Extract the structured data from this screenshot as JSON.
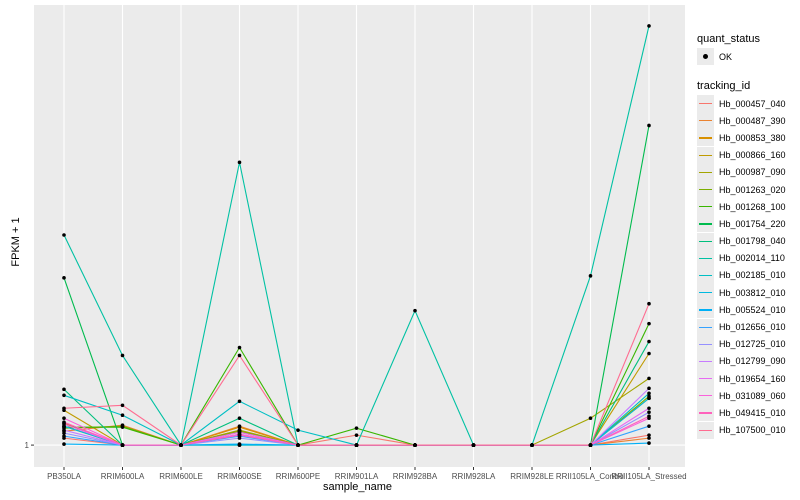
{
  "chart_data": {
    "type": "line",
    "xlabel": "sample_name",
    "ylabel": "FPKM + 1",
    "ylim": [
      -0.1,
      23.1
    ],
    "y_ticks": [
      "1"
    ],
    "y_tick_values": [
      1
    ],
    "grid": true,
    "legend_position": "right",
    "categories": [
      "PB350LA",
      "RRIM600LA",
      "RRIM600LE",
      "RRIM600SE",
      "RRIM600PE",
      "RRIM901LA",
      "RRIM928BA",
      "RRIM928LA",
      "RRIM928LE",
      "RRII105LA_Control",
      "RRII105LA_Stressed"
    ],
    "point_legend": {
      "title": "quant_status",
      "label": "OK"
    },
    "series_legend_title": "tracking_id",
    "series": [
      {
        "name": "Hb_000457_040",
        "color": "#F8766D",
        "values": [
          1.35,
          1,
          1,
          1.75,
          1,
          1.5,
          1,
          1,
          1,
          1,
          1.5
        ]
      },
      {
        "name": "Hb_000487_390",
        "color": "#EA8331",
        "values": [
          1.7,
          2,
          1,
          1.95,
          1,
          1,
          1,
          1,
          1,
          1,
          1.35
        ]
      },
      {
        "name": "Hb_000853_380",
        "color": "#D89000",
        "values": [
          2.1,
          1,
          1,
          1.9,
          1,
          1,
          1,
          1,
          1,
          1,
          3.35
        ]
      },
      {
        "name": "Hb_000866_160",
        "color": "#C09B00",
        "values": [
          2.75,
          1,
          1,
          1.65,
          1,
          1,
          1,
          1,
          1,
          1,
          5.6
        ]
      },
      {
        "name": "Hb_000987_090",
        "color": "#A3A500",
        "values": [
          1.95,
          1,
          1,
          1.75,
          1,
          1,
          1,
          1,
          1,
          2.35,
          4.35
        ]
      },
      {
        "name": "Hb_001263_020",
        "color": "#7CAE00",
        "values": [
          1.85,
          1.95,
          1,
          1.7,
          1,
          1,
          1,
          1,
          1,
          1,
          3.45
        ]
      },
      {
        "name": "Hb_001268_100",
        "color": "#39B600",
        "values": [
          1.9,
          1.9,
          1,
          5.9,
          1,
          1.85,
          1,
          1,
          1,
          1,
          7.1
        ]
      },
      {
        "name": "Hb_001754_220",
        "color": "#00BB4E",
        "values": [
          9.4,
          1,
          1,
          1,
          1,
          1,
          1,
          1,
          1,
          1,
          17.05
        ]
      },
      {
        "name": "Hb_001798_040",
        "color": "#00BF7D",
        "values": [
          3.8,
          1,
          1,
          2.35,
          1,
          1,
          1,
          1,
          1,
          1,
          6.2
        ]
      },
      {
        "name": "Hb_002014_110",
        "color": "#00C1A3",
        "values": [
          11.55,
          5.5,
          1,
          15.2,
          1,
          1,
          7.75,
          1,
          1,
          9.5,
          22.05
        ]
      },
      {
        "name": "Hb_002185_010",
        "color": "#00BFC4",
        "values": [
          3.5,
          2.5,
          1,
          3.2,
          1.75,
          1,
          1,
          1,
          1,
          1,
          3.6
        ]
      },
      {
        "name": "Hb_003812_010",
        "color": "#00BAE0",
        "values": [
          1.95,
          1,
          1,
          1,
          1,
          1,
          1,
          1,
          1,
          1,
          3.35
        ]
      },
      {
        "name": "Hb_005524_010",
        "color": "#00B0F6",
        "values": [
          1.05,
          1,
          1,
          1.05,
          1,
          1,
          1,
          1,
          1,
          1,
          1.1
        ]
      },
      {
        "name": "Hb_012656_010",
        "color": "#35A2FF",
        "values": [
          1.45,
          1,
          1,
          1.45,
          1,
          1,
          1,
          1,
          1,
          1,
          1.95
        ]
      },
      {
        "name": "Hb_012725_010",
        "color": "#9590FF",
        "values": [
          1.6,
          1,
          1,
          1.35,
          1,
          1,
          1,
          1,
          1,
          1,
          2.65
        ]
      },
      {
        "name": "Hb_012799_090",
        "color": "#C77CFF",
        "values": [
          1.75,
          1,
          1,
          1.55,
          1,
          1,
          1,
          1,
          1,
          1,
          3.85
        ]
      },
      {
        "name": "Hb_019654_160",
        "color": "#E76BF3",
        "values": [
          2.05,
          1,
          1,
          1.65,
          1,
          1,
          1,
          1,
          1,
          1,
          2.85
        ]
      },
      {
        "name": "Hb_031089_060",
        "color": "#FA62DB",
        "values": [
          2.35,
          1,
          1,
          1.55,
          1,
          1,
          1,
          1,
          1,
          1,
          2.35
        ]
      },
      {
        "name": "Hb_049415_010",
        "color": "#FF62BC",
        "values": [
          2.15,
          1,
          1,
          1.5,
          1,
          1,
          1,
          1,
          1,
          1,
          2.45
        ]
      },
      {
        "name": "Hb_107500_010",
        "color": "#FF6C91",
        "values": [
          2.85,
          3,
          1,
          5.5,
          1,
          1,
          1,
          1,
          1,
          1,
          8.1
        ]
      }
    ]
  }
}
